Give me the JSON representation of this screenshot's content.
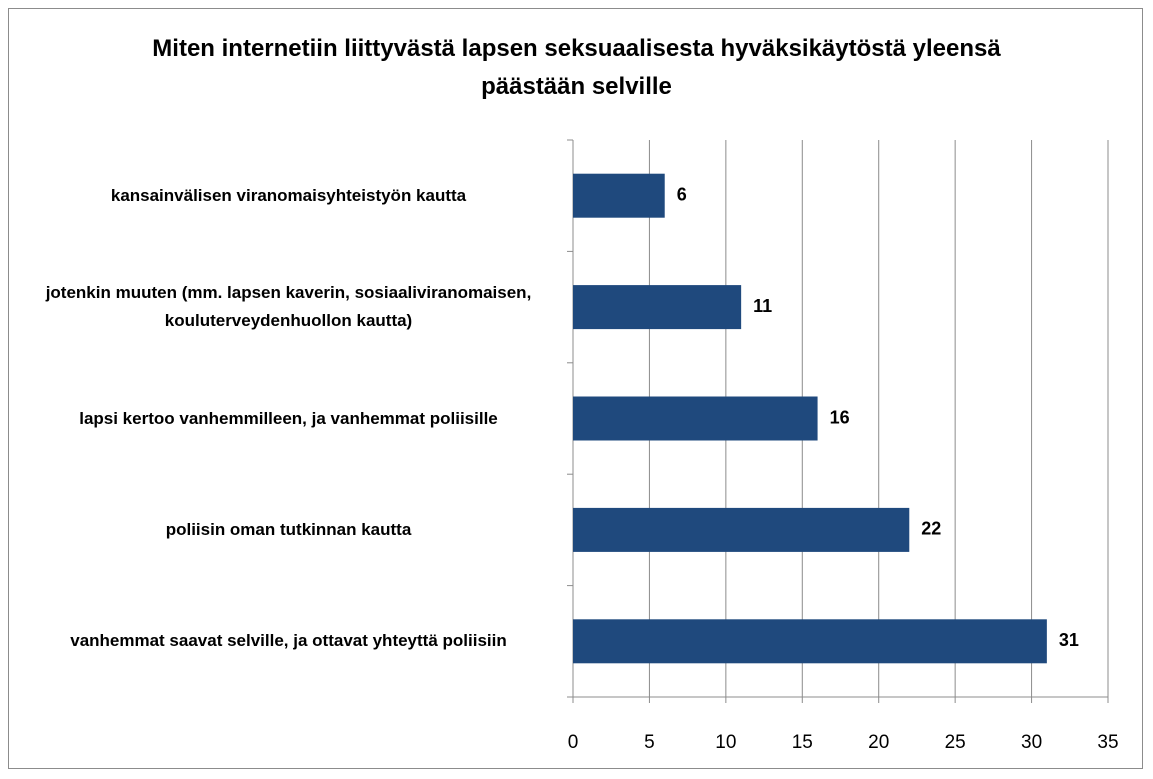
{
  "chart_data": {
    "type": "hbar",
    "title": "Miten internetiin liittyvästä lapsen seksuaalisesta hyväksikäytöstä yleensä päästään selville",
    "categories": [
      "kansainvälisen viranomaisyhteistyön kautta",
      "jotenkin muuten (mm. lapsen kaverin, sosiaaliviranomaisen, kouluterveydenhuollon kautta)",
      "lapsi kertoo vanhemmilleen, ja vanhemmat poliisille",
      "poliisin oman tutkinnan kautta",
      "vanhemmat saavat selville, ja ottavat yhteyttä poliisiin"
    ],
    "values": [
      6,
      11,
      16,
      22,
      31
    ],
    "color": "#1f497d",
    "xlim": [
      0,
      35
    ],
    "xticks": [
      0,
      5,
      10,
      15,
      20,
      25,
      30,
      35
    ],
    "grid": true
  }
}
